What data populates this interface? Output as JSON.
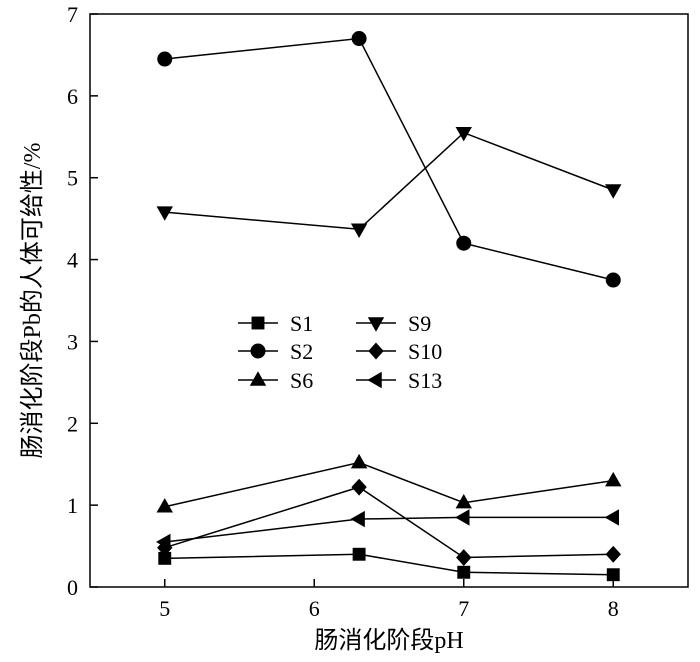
{
  "chart_data": {
    "type": "line",
    "title": "",
    "xlabel": "肠消化阶段pH",
    "ylabel": "肠消化阶段Pb的人体可给性/%",
    "xlim": [
      4.5,
      8.5
    ],
    "ylim": [
      0,
      7
    ],
    "xticks": [
      5,
      6,
      7,
      8
    ],
    "yticks": [
      0,
      1,
      2,
      3,
      4,
      5,
      6,
      7
    ],
    "x": [
      5,
      6.3,
      7,
      8
    ],
    "grid": false,
    "legend_position": "center-left",
    "series": [
      {
        "name": "S1",
        "marker": "square",
        "values": [
          0.35,
          0.4,
          0.18,
          0.15
        ]
      },
      {
        "name": "S2",
        "marker": "circle",
        "values": [
          6.45,
          6.7,
          4.2,
          3.75
        ]
      },
      {
        "name": "S6",
        "marker": "triangle-up",
        "values": [
          0.98,
          1.52,
          1.03,
          1.3
        ]
      },
      {
        "name": "S9",
        "marker": "triangle-down",
        "values": [
          4.58,
          4.37,
          5.55,
          4.85
        ]
      },
      {
        "name": "S10",
        "marker": "diamond",
        "values": [
          0.48,
          1.22,
          0.36,
          0.4
        ]
      },
      {
        "name": "S13",
        "marker": "triangle-left",
        "values": [
          0.55,
          0.83,
          0.85,
          0.85
        ]
      }
    ]
  }
}
